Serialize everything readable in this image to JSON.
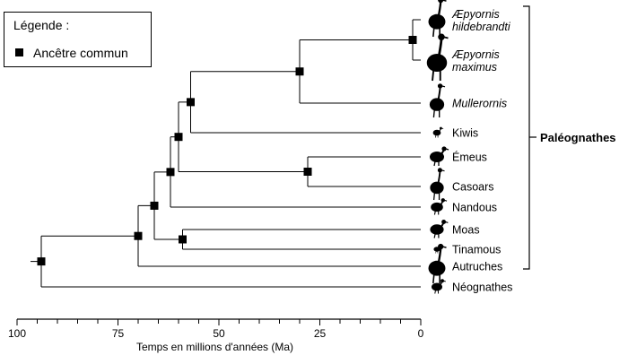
{
  "legend": {
    "title": "Légende :",
    "item_label": "Ancêtre commun"
  },
  "taxa": [
    {
      "line1": "Æpyornis",
      "line2": "hildebrandti",
      "italic": true,
      "icon": "elephant-bird-icon"
    },
    {
      "line1": "Æpyornis",
      "line2": "maximus",
      "italic": true,
      "icon": "elephant-bird-icon"
    },
    {
      "line1": "Mullerornis",
      "line2": "",
      "italic": true,
      "icon": "mullerornis-icon"
    },
    {
      "line1": "Kiwis",
      "line2": "",
      "italic": false,
      "icon": "kiwi-icon"
    },
    {
      "line1": "Émeus",
      "line2": "",
      "italic": false,
      "icon": "emu-icon"
    },
    {
      "line1": "Casoars",
      "line2": "",
      "italic": false,
      "icon": "cassowary-icon"
    },
    {
      "line1": "Nandous",
      "line2": "",
      "italic": false,
      "icon": "rhea-icon"
    },
    {
      "line1": "Moas",
      "line2": "",
      "italic": false,
      "icon": "moa-icon"
    },
    {
      "line1": "Tinamous",
      "line2": "",
      "italic": false,
      "icon": "tinamou-icon"
    },
    {
      "line1": "Autruches",
      "line2": "",
      "italic": false,
      "icon": "ostrich-icon"
    },
    {
      "line1": "Néognathes",
      "line2": "",
      "italic": false,
      "icon": "chicken-icon"
    }
  ],
  "clade_label": "Paléognathes",
  "axis": {
    "title": "Temps en millions d'années (Ma)",
    "min_ma": 0,
    "max_ma": 100,
    "minor_step_ma": 5,
    "tick_labels": [
      "100",
      "75",
      "50",
      "25",
      "0"
    ],
    "tick_values_ma": [
      100,
      75,
      50,
      25,
      0
    ]
  },
  "nodes": [
    {
      "id": "root",
      "age_ma": 94,
      "children": [
        "paleo",
        "t10"
      ]
    },
    {
      "id": "paleo",
      "age_ma": 70,
      "children": [
        "n_a",
        "t9"
      ]
    },
    {
      "id": "n_a",
      "age_ma": 66,
      "children": [
        "n_b",
        "n_moa"
      ]
    },
    {
      "id": "n_moa",
      "age_ma": 59,
      "children": [
        "t7",
        "t8"
      ]
    },
    {
      "id": "n_b",
      "age_ma": 62,
      "children": [
        "n_c",
        "t6"
      ]
    },
    {
      "id": "n_c",
      "age_ma": 60,
      "children": [
        "n_d",
        "n_emu"
      ]
    },
    {
      "id": "n_emu",
      "age_ma": 28,
      "children": [
        "t4",
        "t5"
      ]
    },
    {
      "id": "n_d",
      "age_ma": 57,
      "children": [
        "n_e",
        "t3"
      ]
    },
    {
      "id": "n_e",
      "age_ma": 30,
      "children": [
        "n_f",
        "t2"
      ]
    },
    {
      "id": "n_f",
      "age_ma": 2,
      "children": [
        "t0",
        "t1"
      ]
    }
  ]
}
